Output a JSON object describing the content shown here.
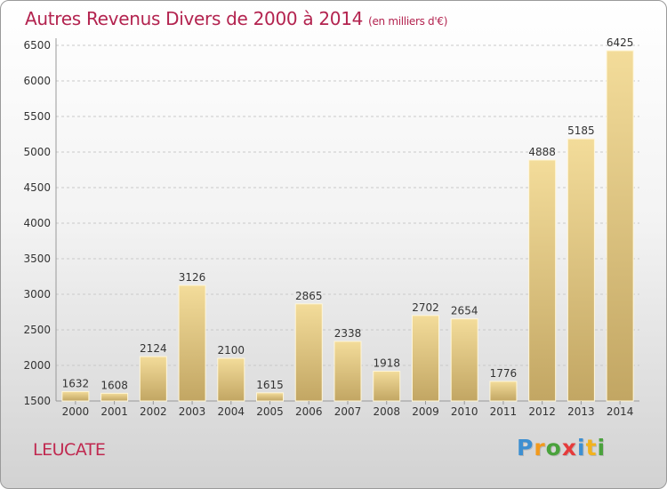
{
  "header": {
    "title": "Autres Revenus Divers de 2000 à 2014",
    "unit": "(en milliers d'€)"
  },
  "footer": {
    "location": "LEUCATE",
    "brand": "Proxiti",
    "brand_letters": [
      {
        "char": "P",
        "color": "#3d8fd1"
      },
      {
        "char": "r",
        "color": "#f29a1d"
      },
      {
        "char": "o",
        "color": "#4aa23c"
      },
      {
        "char": "x",
        "color": "#e53b3b"
      },
      {
        "char": "i",
        "color": "#3d8fd1"
      },
      {
        "char": "t",
        "color": "#f2b21d"
      },
      {
        "char": "i",
        "color": "#4aa23c"
      }
    ]
  },
  "chart_data": {
    "type": "bar",
    "categories": [
      "2000",
      "2001",
      "2002",
      "2003",
      "2004",
      "2005",
      "2006",
      "2007",
      "2008",
      "2009",
      "2010",
      "2011",
      "2012",
      "2013",
      "2014"
    ],
    "values": [
      1632,
      1608,
      2124,
      3126,
      2100,
      1615,
      2865,
      2338,
      1918,
      2702,
      2654,
      1776,
      4888,
      5185,
      6425
    ],
    "ylim": [
      1500,
      6500
    ],
    "yticks": [
      1500,
      2000,
      2500,
      3000,
      3500,
      4000,
      4500,
      5000,
      5500,
      6000,
      6500
    ],
    "grid": true,
    "colors": {
      "bar_top": "#f3dc9a",
      "bar_bottom": "#c2a663",
      "grid": "#c9c9c9",
      "text": "#333333"
    }
  }
}
